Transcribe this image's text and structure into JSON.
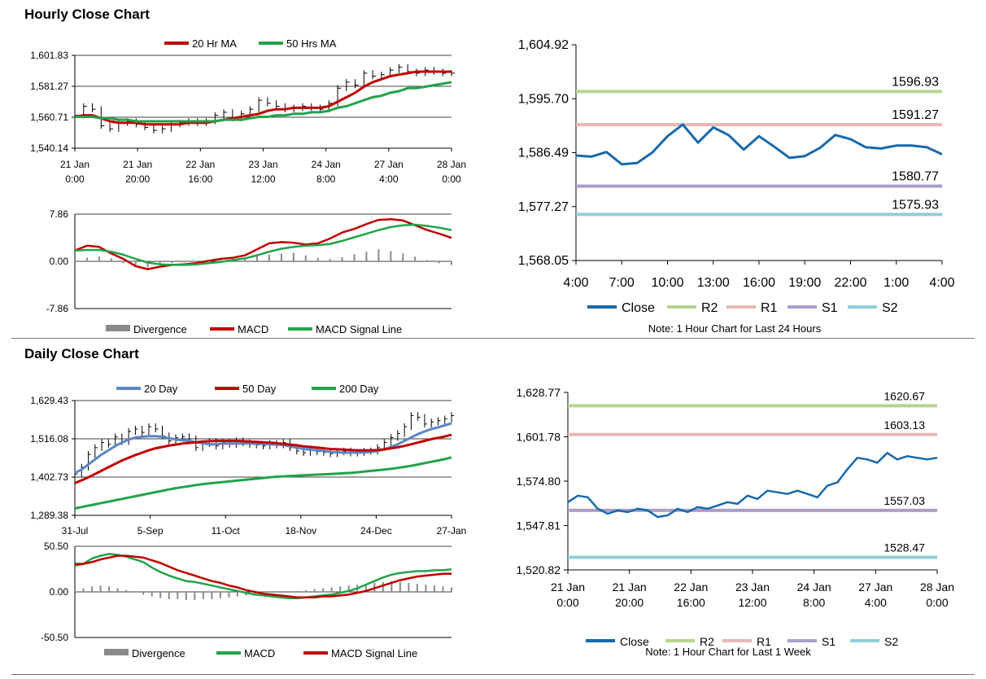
{
  "sections": {
    "hourly_title": "Hourly Close Chart",
    "daily_title": "Daily Close Chart"
  },
  "colors": {
    "ma20": "#c00000",
    "ma50": "#21a34a",
    "day20": "#5b86c4",
    "day50": "#c00000",
    "day200": "#21a34a",
    "close": "#1769ac",
    "r2": "#b7d48e",
    "r1": "#e6b7b5",
    "s1": "#ab9ec9",
    "s2": "#8fcfd6",
    "divergence": "#8a8a8a",
    "macd_red": "#c00000",
    "macd_green": "#21a34a"
  },
  "chart_data": [
    {
      "id": "hourly_price",
      "type": "line",
      "title": "Hourly Close Chart",
      "legend": [
        "20 Hr MA",
        "50 Hrs MA"
      ],
      "y_ticks": [
        "1,601.83",
        "1,581.27",
        "1,560.71",
        "1,540.14"
      ],
      "ylim": [
        1540.14,
        1601.83
      ],
      "x_ticks": [
        {
          "l1": "21 Jan",
          "l2": "0:00"
        },
        {
          "l1": "21 Jan",
          "l2": "20:00"
        },
        {
          "l1": "22 Jan",
          "l2": "16:00"
        },
        {
          "l1": "23 Jan",
          "l2": "12:00"
        },
        {
          "l1": "24 Jan",
          "l2": "8:00"
        },
        {
          "l1": "27 Jan",
          "l2": "4:00"
        },
        {
          "l1": "28 Jan",
          "l2": "0:00"
        }
      ],
      "price": [
        1562,
        1568,
        1566,
        1555,
        1553,
        1557,
        1558,
        1556,
        1554,
        1552,
        1553,
        1556,
        1557,
        1558,
        1557,
        1558,
        1562,
        1564,
        1560,
        1563,
        1566,
        1572,
        1570,
        1568,
        1566,
        1567,
        1568,
        1567,
        1566,
        1570,
        1580,
        1584,
        1582,
        1590,
        1588,
        1589,
        1592,
        1594,
        1591,
        1590,
        1592,
        1591,
        1590,
        1590
      ],
      "series": [
        {
          "name": "20 Hr MA",
          "values": [
            1561,
            1562,
            1562,
            1560,
            1558,
            1557,
            1557,
            1557,
            1556,
            1556,
            1556,
            1556,
            1556,
            1557,
            1557,
            1557,
            1558,
            1559,
            1560,
            1561,
            1562,
            1563,
            1565,
            1566,
            1566,
            1567,
            1567,
            1567,
            1567,
            1568,
            1571,
            1574,
            1577,
            1581,
            1584,
            1586,
            1588,
            1589,
            1590,
            1591,
            1591,
            1591,
            1591,
            1591
          ]
        },
        {
          "name": "50 Hrs MA",
          "values": [
            1561,
            1561,
            1561,
            1560,
            1560,
            1559,
            1559,
            1558,
            1558,
            1558,
            1558,
            1558,
            1558,
            1558,
            1558,
            1558,
            1558,
            1559,
            1559,
            1559,
            1560,
            1561,
            1561,
            1562,
            1562,
            1563,
            1563,
            1564,
            1564,
            1565,
            1567,
            1568,
            1570,
            1572,
            1574,
            1575,
            1577,
            1578,
            1580,
            1580,
            1581,
            1582,
            1583,
            1584
          ]
        }
      ]
    },
    {
      "id": "hourly_macd",
      "type": "line",
      "legend": [
        "Divergence",
        "MACD",
        "MACD Signal Line"
      ],
      "y_ticks": [
        "7.86",
        "0.00",
        "-7.86"
      ],
      "ylim": [
        -7.86,
        7.86
      ],
      "divergence": [
        0.3,
        0.6,
        0.8,
        0.5,
        -0.3,
        -0.8,
        -1.0,
        -0.6,
        -0.3,
        -0.2,
        -0.1,
        0.1,
        0.2,
        0.4,
        0.6,
        0.9,
        1.1,
        1.3,
        1.4,
        1.0,
        0.6,
        0.4,
        0.7,
        1.2,
        1.6,
        2.0,
        1.7,
        1.3,
        0.8,
        0.2,
        -0.3,
        -0.6
      ],
      "series": [
        {
          "name": "MACD",
          "values": [
            1.8,
            2.6,
            2.4,
            1.3,
            0.4,
            -0.8,
            -1.3,
            -0.9,
            -0.6,
            -0.5,
            -0.3,
            0.1,
            0.4,
            0.6,
            1.0,
            2.0,
            3.0,
            3.2,
            3.1,
            2.8,
            3.0,
            3.8,
            4.8,
            5.4,
            6.2,
            6.9,
            7.0,
            6.8,
            6.0,
            5.2,
            4.6,
            3.9
          ]
        },
        {
          "name": "MACD Signal Line",
          "values": [
            1.8,
            1.9,
            1.9,
            1.6,
            1.1,
            0.4,
            -0.2,
            -0.5,
            -0.6,
            -0.6,
            -0.5,
            -0.3,
            -0.1,
            0.2,
            0.5,
            1.0,
            1.6,
            2.1,
            2.4,
            2.6,
            2.7,
            2.9,
            3.4,
            4.0,
            4.6,
            5.2,
            5.7,
            6.0,
            6.1,
            5.9,
            5.6,
            5.2
          ]
        }
      ]
    },
    {
      "id": "hourly_24h",
      "type": "line",
      "note": "Note: 1 Hour Chart for Last 24 Hours",
      "y_ticks": [
        "1,604.92",
        "1,595.70",
        "1,586.49",
        "1,577.27",
        "1,568.05"
      ],
      "ylim": [
        1568.05,
        1604.92
      ],
      "x_ticks": [
        "4:00",
        "7:00",
        "10:00",
        "13:00",
        "16:00",
        "19:00",
        "22:00",
        "1:00",
        "4:00"
      ],
      "levels": [
        {
          "name": "R2",
          "value": 1596.93,
          "label": "1596.93"
        },
        {
          "name": "R1",
          "value": 1591.27,
          "label": "1591.27"
        },
        {
          "name": "S1",
          "value": 1580.77,
          "label": "1580.77"
        },
        {
          "name": "S2",
          "value": 1575.93,
          "label": "1575.93"
        }
      ],
      "series": [
        {
          "name": "Close",
          "values": [
            1586.0,
            1585.8,
            1586.6,
            1584.5,
            1584.7,
            1586.5,
            1589.3,
            1591.3,
            1588.2,
            1590.8,
            1589.5,
            1587.0,
            1589.3,
            1587.5,
            1585.6,
            1585.9,
            1587.3,
            1589.5,
            1588.8,
            1587.4,
            1587.2,
            1587.7,
            1587.7,
            1587.4,
            1586.2
          ]
        }
      ],
      "legend": [
        "Close",
        "R2",
        "R1",
        "S1",
        "S2"
      ]
    },
    {
      "id": "daily_price",
      "type": "line",
      "title": "Daily Close Chart",
      "legend": [
        "20 Day",
        "50 Day",
        "200 Day"
      ],
      "y_ticks": [
        "1,629.43",
        "1,516.08",
        "1,402.73",
        "1,289.38"
      ],
      "ylim": [
        1289.38,
        1629.43
      ],
      "x_ticks": [
        "31-Jul",
        "5-Sep",
        "11-Oct",
        "18-Nov",
        "24-Dec",
        "27-Jan"
      ],
      "price": [
        1412,
        1432,
        1470,
        1490,
        1505,
        1500,
        1522,
        1508,
        1538,
        1545,
        1535,
        1552,
        1545,
        1525,
        1510,
        1519,
        1522,
        1516,
        1490,
        1502,
        1508,
        1495,
        1505,
        1500,
        1510,
        1504,
        1500,
        1498,
        1495,
        1502,
        1498,
        1505,
        1490,
        1480,
        1475,
        1482,
        1478,
        1476,
        1472,
        1478,
        1480,
        1474,
        1476,
        1479,
        1480,
        1490,
        1505,
        1520,
        1532,
        1552,
        1585,
        1580,
        1560,
        1566,
        1570,
        1575,
        1585
      ],
      "series": [
        {
          "name": "20 Day",
          "values": [
            1415,
            1425,
            1440,
            1455,
            1470,
            1482,
            1495,
            1505,
            1514,
            1520,
            1522,
            1524,
            1524,
            1522,
            1518,
            1514,
            1512,
            1510,
            1506,
            1503,
            1500,
            1500,
            1502,
            1502,
            1502,
            1502,
            1502,
            1501,
            1501,
            1500,
            1499,
            1498,
            1494,
            1490,
            1486,
            1484,
            1482,
            1480,
            1477,
            1476,
            1475,
            1475,
            1475,
            1476,
            1477,
            1480,
            1485,
            1492,
            1500,
            1510,
            1520,
            1530,
            1538,
            1545,
            1550,
            1556,
            1562
          ]
        },
        {
          "name": "50 Day",
          "values": [
            1385,
            1393,
            1402,
            1412,
            1422,
            1432,
            1442,
            1452,
            1460,
            1468,
            1475,
            1482,
            1488,
            1492,
            1496,
            1499,
            1502,
            1504,
            1506,
            1508,
            1509,
            1510,
            1510,
            1510,
            1510,
            1509,
            1508,
            1507,
            1506,
            1505,
            1503,
            1501,
            1499,
            1497,
            1494,
            1492,
            1490,
            1488,
            1486,
            1485,
            1484,
            1483,
            1482,
            1482,
            1482,
            1483,
            1485,
            1488,
            1491,
            1495,
            1500,
            1505,
            1510,
            1515,
            1519,
            1523,
            1528
          ]
        },
        {
          "name": "200 Day",
          "values": [
            1310,
            1314,
            1318,
            1322,
            1326,
            1330,
            1334,
            1338,
            1342,
            1346,
            1350,
            1354,
            1358,
            1362,
            1366,
            1370,
            1373,
            1376,
            1379,
            1382,
            1384,
            1386,
            1388,
            1390,
            1392,
            1394,
            1396,
            1398,
            1400,
            1402,
            1404,
            1405,
            1406,
            1407,
            1408,
            1409,
            1410,
            1411,
            1412,
            1413,
            1414,
            1415,
            1417,
            1419,
            1421,
            1423,
            1425,
            1427,
            1430,
            1433,
            1436,
            1440,
            1444,
            1448,
            1452,
            1456,
            1461
          ]
        }
      ]
    },
    {
      "id": "daily_macd",
      "type": "line",
      "legend": [
        "Divergence",
        "MACD",
        "MACD Signal Line"
      ],
      "y_ticks": [
        "50.50",
        "0.00",
        "-50.50"
      ],
      "ylim": [
        -50.5,
        50.5
      ],
      "divergence": [
        3,
        4,
        6,
        7,
        6,
        4,
        2,
        0,
        -3,
        -5,
        -7,
        -8,
        -8,
        -9,
        -9,
        -8,
        -8,
        -7,
        -6,
        -5,
        -4,
        -3,
        -2,
        -1,
        -1,
        0,
        1,
        2,
        3,
        4,
        5,
        6,
        7,
        8,
        9,
        10,
        11,
        12,
        11,
        10,
        9,
        8,
        7,
        6,
        5
      ],
      "series": [
        {
          "name": "MACD",
          "values": [
            29,
            31,
            37,
            40,
            42,
            41,
            39,
            36,
            33,
            27,
            22,
            18,
            15,
            12,
            11,
            9,
            7,
            5,
            3,
            1,
            -1,
            -3,
            -4,
            -5,
            -6,
            -7,
            -7,
            -6,
            -5,
            -4,
            -3,
            -1,
            1,
            4,
            8,
            12,
            16,
            19,
            21,
            22,
            23,
            23,
            24,
            24,
            25
          ]
        },
        {
          "name": "MACD Signal Line",
          "values": [
            31,
            31,
            33,
            36,
            38,
            40,
            40,
            39,
            38,
            35,
            32,
            28,
            24,
            21,
            18,
            15,
            12,
            10,
            7,
            5,
            2,
            0,
            -2,
            -3,
            -4,
            -5,
            -6,
            -6,
            -6,
            -5,
            -5,
            -4,
            -3,
            -1,
            1,
            4,
            7,
            10,
            13,
            15,
            17,
            18,
            19,
            20,
            20
          ]
        }
      ]
    },
    {
      "id": "daily_week",
      "type": "line",
      "note": "Note: 1 Hour Chart for Last 1 Week",
      "y_ticks": [
        "1,628.77",
        "1,601.78",
        "1,574.80",
        "1,547.81",
        "1,520.82"
      ],
      "ylim": [
        1520.82,
        1628.77
      ],
      "x_ticks": [
        {
          "l1": "21 Jan",
          "l2": "0:00"
        },
        {
          "l1": "21 Jan",
          "l2": "20:00"
        },
        {
          "l1": "22 Jan",
          "l2": "16:00"
        },
        {
          "l1": "23 Jan",
          "l2": "12:00"
        },
        {
          "l1": "24 Jan",
          "l2": "8:00"
        },
        {
          "l1": "27 Jan",
          "l2": "4:00"
        },
        {
          "l1": "28 Jan",
          "l2": "0:00"
        }
      ],
      "levels": [
        {
          "name": "R2",
          "value": 1620.67,
          "label": "1620.67"
        },
        {
          "name": "R1",
          "value": 1603.13,
          "label": "1603.13"
        },
        {
          "name": "S1",
          "value": 1557.03,
          "label": "1557.03"
        },
        {
          "name": "S2",
          "value": 1528.47,
          "label": "1528.47"
        }
      ],
      "series": [
        {
          "name": "Close",
          "values": [
            1562,
            1566,
            1565,
            1558,
            1555,
            1557,
            1556,
            1558,
            1557,
            1553,
            1554,
            1558,
            1556,
            1559,
            1558,
            1560,
            1562,
            1561,
            1566,
            1564,
            1569,
            1568,
            1567,
            1569,
            1567,
            1565,
            1572,
            1574,
            1582,
            1589,
            1588,
            1586,
            1592,
            1588,
            1590,
            1589,
            1588,
            1589
          ]
        }
      ],
      "legend": [
        "Close",
        "R2",
        "R1",
        "S1",
        "S2"
      ]
    }
  ]
}
